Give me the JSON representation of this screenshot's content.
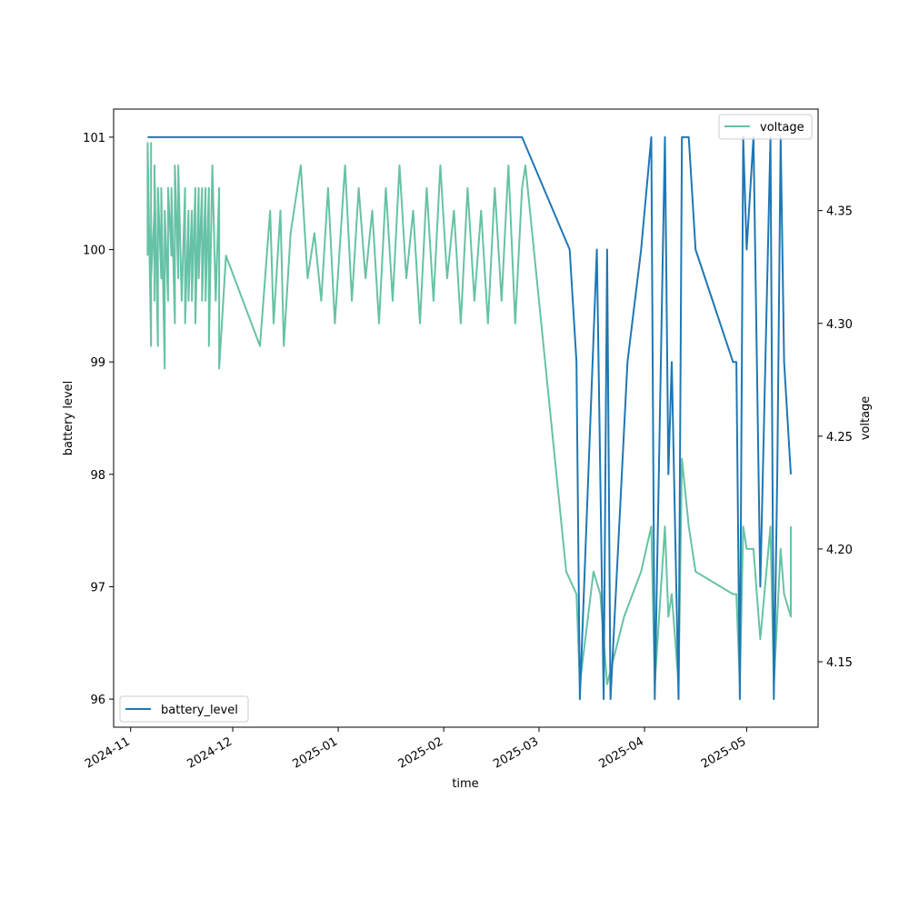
{
  "chart_data": {
    "type": "line",
    "xlabel": "time",
    "ylabel_left": "battery level",
    "ylabel_right": "voltage",
    "x_ticks": [
      "2024-11",
      "2024-12",
      "2025-01",
      "2025-02",
      "2025-03",
      "2025-04",
      "2025-05"
    ],
    "x_range": [
      "2024-10-27",
      "2025-05-22"
    ],
    "y_left": {
      "ticks": [
        96,
        97,
        98,
        99,
        100,
        101
      ],
      "range": [
        95.75,
        101.25
      ]
    },
    "y_right": {
      "ticks": [
        4.15,
        4.2,
        4.25,
        4.3,
        4.35
      ],
      "range": [
        4.121,
        4.395
      ]
    },
    "grid": false,
    "series": [
      {
        "name": "battery_level",
        "axis": "left",
        "color": "#1f77b4",
        "legend": "bottom-left",
        "points": [
          [
            "2024-11-06",
            101
          ],
          [
            "2025-02-24",
            101
          ],
          [
            "2025-03-10",
            100
          ],
          [
            "2025-03-12",
            99
          ],
          [
            "2025-03-13",
            96
          ],
          [
            "2025-03-18",
            100
          ],
          [
            "2025-03-20",
            96
          ],
          [
            "2025-03-21",
            100
          ],
          [
            "2025-03-22",
            96
          ],
          [
            "2025-03-27",
            99
          ],
          [
            "2025-03-31",
            100
          ],
          [
            "2025-04-03",
            101
          ],
          [
            "2025-04-04",
            96
          ],
          [
            "2025-04-07",
            101
          ],
          [
            "2025-04-08",
            98
          ],
          [
            "2025-04-09",
            99
          ],
          [
            "2025-04-11",
            96
          ],
          [
            "2025-04-12",
            101
          ],
          [
            "2025-04-14",
            101
          ],
          [
            "2025-04-16",
            100
          ],
          [
            "2025-04-27",
            99
          ],
          [
            "2025-04-28",
            99
          ],
          [
            "2025-04-29",
            96
          ],
          [
            "2025-04-30",
            101
          ],
          [
            "2025-05-01",
            100
          ],
          [
            "2025-05-03",
            101
          ],
          [
            "2025-05-05",
            97
          ],
          [
            "2025-05-08",
            101
          ],
          [
            "2025-05-09",
            96
          ],
          [
            "2025-05-10",
            98
          ],
          [
            "2025-05-11",
            101
          ],
          [
            "2025-05-12",
            99
          ],
          [
            "2025-05-14",
            98
          ]
        ]
      },
      {
        "name": "voltage",
        "axis": "right",
        "color": "#66c2a5",
        "legend": "top-right",
        "points": [
          [
            "2024-11-06",
            4.33
          ],
          [
            "2024-11-06",
            4.38
          ],
          [
            "2024-11-07",
            4.29
          ],
          [
            "2024-11-07",
            4.38
          ],
          [
            "2024-11-07",
            4.32
          ],
          [
            "2024-11-08",
            4.35
          ],
          [
            "2024-11-08",
            4.31
          ],
          [
            "2024-11-08",
            4.37
          ],
          [
            "2024-11-09",
            4.29
          ],
          [
            "2024-11-09",
            4.36
          ],
          [
            "2024-11-10",
            4.32
          ],
          [
            "2024-11-10",
            4.36
          ],
          [
            "2024-11-11",
            4.28
          ],
          [
            "2024-11-11",
            4.35
          ],
          [
            "2024-11-12",
            4.31
          ],
          [
            "2024-11-12",
            4.36
          ],
          [
            "2024-11-13",
            4.33
          ],
          [
            "2024-11-13",
            4.36
          ],
          [
            "2024-11-14",
            4.3
          ],
          [
            "2024-11-14",
            4.37
          ],
          [
            "2024-11-15",
            4.32
          ],
          [
            "2024-11-15",
            4.37
          ],
          [
            "2024-11-16",
            4.31
          ],
          [
            "2024-11-17",
            4.36
          ],
          [
            "2024-11-17",
            4.3
          ],
          [
            "2024-11-18",
            4.35
          ],
          [
            "2024-11-18",
            4.31
          ],
          [
            "2024-11-19",
            4.35
          ],
          [
            "2024-11-19",
            4.31
          ],
          [
            "2024-11-20",
            4.36
          ],
          [
            "2024-11-20",
            4.3
          ],
          [
            "2024-11-21",
            4.36
          ],
          [
            "2024-11-21",
            4.32
          ],
          [
            "2024-11-22",
            4.36
          ],
          [
            "2024-11-22",
            4.31
          ],
          [
            "2024-11-23",
            4.36
          ],
          [
            "2024-11-23",
            4.31
          ],
          [
            "2024-11-24",
            4.36
          ],
          [
            "2024-11-24",
            4.29
          ],
          [
            "2024-11-25",
            4.37
          ],
          [
            "2024-11-26",
            4.31
          ],
          [
            "2024-11-27",
            4.36
          ],
          [
            "2024-11-27",
            4.28
          ],
          [
            "2024-11-29",
            4.33
          ],
          [
            "2024-12-09",
            4.29
          ],
          [
            "2024-12-12",
            4.35
          ],
          [
            "2024-12-13",
            4.3
          ],
          [
            "2024-12-15",
            4.35
          ],
          [
            "2024-12-16",
            4.29
          ],
          [
            "2024-12-18",
            4.34
          ],
          [
            "2024-12-21",
            4.37
          ],
          [
            "2024-12-23",
            4.32
          ],
          [
            "2024-12-25",
            4.34
          ],
          [
            "2024-12-27",
            4.31
          ],
          [
            "2024-12-29",
            4.36
          ],
          [
            "2024-12-31",
            4.3
          ],
          [
            "2025-01-03",
            4.37
          ],
          [
            "2025-01-05",
            4.31
          ],
          [
            "2025-01-07",
            4.36
          ],
          [
            "2025-01-09",
            4.32
          ],
          [
            "2025-01-11",
            4.35
          ],
          [
            "2025-01-13",
            4.3
          ],
          [
            "2025-01-15",
            4.36
          ],
          [
            "2025-01-17",
            4.31
          ],
          [
            "2025-01-19",
            4.37
          ],
          [
            "2025-01-21",
            4.32
          ],
          [
            "2025-01-23",
            4.35
          ],
          [
            "2025-01-25",
            4.3
          ],
          [
            "2025-01-27",
            4.36
          ],
          [
            "2025-01-29",
            4.31
          ],
          [
            "2025-01-31",
            4.37
          ],
          [
            "2025-02-02",
            4.32
          ],
          [
            "2025-02-04",
            4.35
          ],
          [
            "2025-02-06",
            4.3
          ],
          [
            "2025-02-08",
            4.36
          ],
          [
            "2025-02-10",
            4.31
          ],
          [
            "2025-02-12",
            4.35
          ],
          [
            "2025-02-14",
            4.3
          ],
          [
            "2025-02-16",
            4.36
          ],
          [
            "2025-02-18",
            4.31
          ],
          [
            "2025-02-20",
            4.37
          ],
          [
            "2025-02-22",
            4.3
          ],
          [
            "2025-02-24",
            4.36
          ],
          [
            "2025-02-25",
            4.37
          ],
          [
            "2025-03-09",
            4.19
          ],
          [
            "2025-03-12",
            4.18
          ],
          [
            "2025-03-13",
            4.14
          ],
          [
            "2025-03-17",
            4.19
          ],
          [
            "2025-03-19",
            4.18
          ],
          [
            "2025-03-20",
            4.16
          ],
          [
            "2025-03-21",
            4.14
          ],
          [
            "2025-03-26",
            4.17
          ],
          [
            "2025-03-31",
            4.19
          ],
          [
            "2025-04-03",
            4.21
          ],
          [
            "2025-04-04",
            4.14
          ],
          [
            "2025-04-07",
            4.21
          ],
          [
            "2025-04-08",
            4.17
          ],
          [
            "2025-04-09",
            4.18
          ],
          [
            "2025-04-11",
            4.14
          ],
          [
            "2025-04-12",
            4.24
          ],
          [
            "2025-04-14",
            4.21
          ],
          [
            "2025-04-16",
            4.19
          ],
          [
            "2025-04-27",
            4.18
          ],
          [
            "2025-04-28",
            4.18
          ],
          [
            "2025-04-29",
            4.14
          ],
          [
            "2025-04-30",
            4.21
          ],
          [
            "2025-05-01",
            4.2
          ],
          [
            "2025-05-03",
            4.2
          ],
          [
            "2025-05-05",
            4.16
          ],
          [
            "2025-05-08",
            4.21
          ],
          [
            "2025-05-09",
            4.14
          ],
          [
            "2025-05-10",
            4.17
          ],
          [
            "2025-05-11",
            4.2
          ],
          [
            "2025-05-12",
            4.18
          ],
          [
            "2025-05-14",
            4.17
          ],
          [
            "2025-05-14",
            4.21
          ]
        ]
      }
    ]
  }
}
